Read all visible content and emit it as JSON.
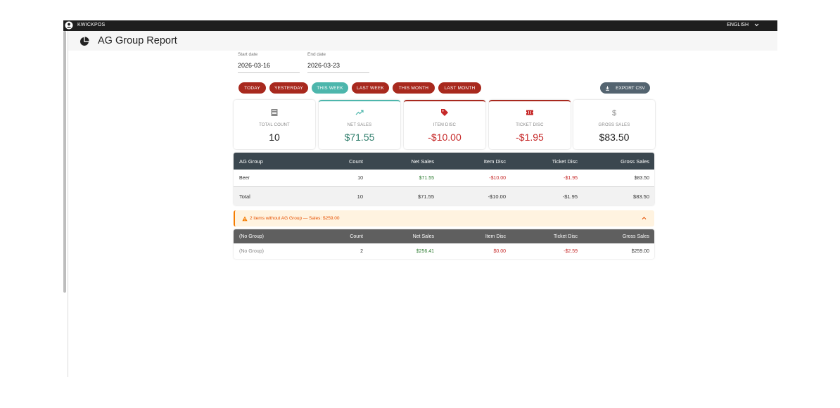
{
  "topbar": {
    "brand": "KWICKPOS",
    "language": "ENGLISH"
  },
  "header": {
    "title": "AG Group Report"
  },
  "dates": {
    "start": {
      "label": "Start date",
      "value": "2026-03-16"
    },
    "end": {
      "label": "End date",
      "value": "2026-03-23"
    }
  },
  "presets": {
    "today": "TODAY",
    "yesterday": "YESTERDAY",
    "this_week": "THIS WEEK",
    "last_week": "LAST WEEK",
    "this_month": "THIS MONTH",
    "last_month": "LAST MONTH",
    "active": "this_week"
  },
  "export_label": "EXPORT CSV",
  "cards": [
    {
      "label": "TOTAL COUNT",
      "value": "10",
      "icon": "list-icon"
    },
    {
      "label": "NET SALES",
      "value": "$71.55",
      "icon": "trending-up-icon"
    },
    {
      "label": "ITEM DISC",
      "value": "-$10.00",
      "icon": "tag-icon"
    },
    {
      "label": "TICKET DISC",
      "value": "-$1.95",
      "icon": "ticket-icon"
    },
    {
      "label": "GROSS SALES",
      "value": "$83.50",
      "icon": "dollar-icon"
    }
  ],
  "table": {
    "columns": [
      "AG Group",
      "Count",
      "Net Sales",
      "Item Disc",
      "Ticket Disc",
      "Gross Sales"
    ],
    "rows": [
      [
        "Beer",
        "10",
        "$71.55",
        "-$10.00",
        "-$1.95",
        "$83.50"
      ]
    ],
    "total": [
      "Total",
      "10",
      "$71.55",
      "-$10.00",
      "-$1.95",
      "$83.50"
    ]
  },
  "warning": {
    "text": "2 items without AG Group — Sales: $259.00"
  },
  "nogroup": {
    "columns": [
      "(No Group)",
      "Count",
      "Net Sales",
      "Item Disc",
      "Ticket Disc",
      "Gross Sales"
    ],
    "rows": [
      [
        "(No Group)",
        "2",
        "$256.41",
        "$0.00",
        "-$2.59",
        "$259.00"
      ]
    ]
  },
  "colors": {
    "chip": "#a8291e",
    "chip_active": "#4db6ac",
    "table_header": "#3b474f",
    "positive": "#2e7d32",
    "negative": "#c62828"
  }
}
